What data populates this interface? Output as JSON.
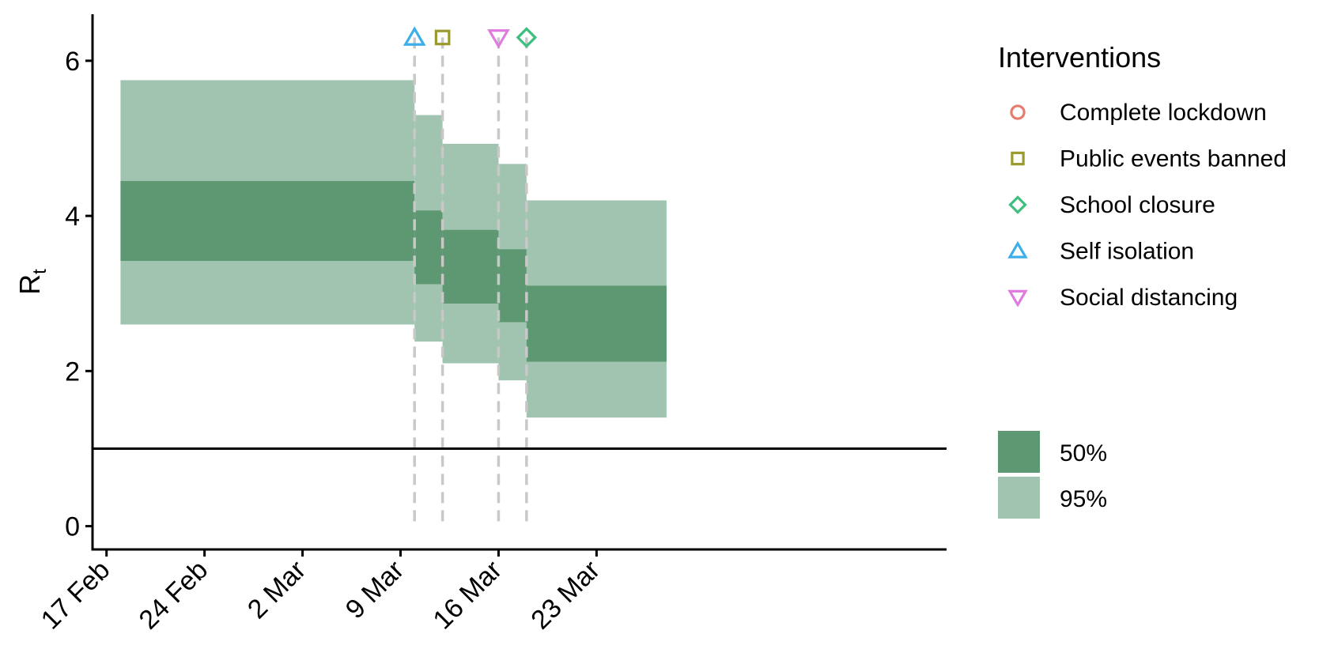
{
  "chart_data": {
    "type": "area",
    "ylabel": "R",
    "ylabel_sub": "t",
    "xlabel": "",
    "ylim": [
      -0.3,
      6.6
    ],
    "yticks": [
      0,
      2,
      4,
      6
    ],
    "xlim": [
      -1,
      60
    ],
    "x_ticks": [
      {
        "day": 0,
        "label": "17 Feb"
      },
      {
        "day": 7,
        "label": "24 Feb"
      },
      {
        "day": 14,
        "label": "2 Mar"
      },
      {
        "day": 21,
        "label": "9 Mar"
      },
      {
        "day": 28,
        "label": "16 Mar"
      },
      {
        "day": 35,
        "label": "23 Mar"
      }
    ],
    "reference_line": 1,
    "series": [
      {
        "start_day": 1,
        "end_day": 22,
        "ci95": [
          2.6,
          5.75
        ],
        "ci50": [
          3.42,
          4.45
        ]
      },
      {
        "start_day": 22,
        "end_day": 24,
        "ci95": [
          2.38,
          5.3
        ],
        "ci50": [
          3.12,
          4.07
        ]
      },
      {
        "start_day": 24,
        "end_day": 28,
        "ci95": [
          2.1,
          4.93
        ],
        "ci50": [
          2.87,
          3.82
        ]
      },
      {
        "start_day": 28,
        "end_day": 30,
        "ci95": [
          1.88,
          4.67
        ],
        "ci50": [
          2.63,
          3.57
        ]
      },
      {
        "start_day": 30,
        "end_day": 40,
        "ci95": [
          1.4,
          4.2
        ],
        "ci50": [
          2.12,
          3.1
        ]
      }
    ],
    "interventions": [
      {
        "name": "Self isolation",
        "day": 22,
        "shape": "triangle-up",
        "color": "#3daee9"
      },
      {
        "name": "Public events banned",
        "day": 24,
        "shape": "square",
        "color": "#9a9a2e"
      },
      {
        "name": "Social distancing",
        "day": 28,
        "shape": "triangle-down",
        "color": "#e07be0"
      },
      {
        "name": "School closure",
        "day": 30,
        "shape": "diamond",
        "color": "#3fbf7f"
      }
    ],
    "marker_y": 6.3,
    "colors": {
      "ci50": "#5e9873",
      "ci95": "#a1c4b0",
      "vline": "#c8c8c8"
    },
    "legend_interventions": {
      "title": "Interventions",
      "items": [
        {
          "label": "Complete lockdown",
          "shape": "circle",
          "color": "#e57c6e"
        },
        {
          "label": "Public events banned",
          "shape": "square",
          "color": "#9a9a2e"
        },
        {
          "label": "School closure",
          "shape": "diamond",
          "color": "#3fbf7f"
        },
        {
          "label": "Self isolation",
          "shape": "triangle-up",
          "color": "#3daee9"
        },
        {
          "label": "Social distancing",
          "shape": "triangle-down",
          "color": "#e07be0"
        }
      ]
    },
    "legend_ci": [
      {
        "label": "50%",
        "color": "#5e9873"
      },
      {
        "label": "95%",
        "color": "#a1c4b0"
      }
    ]
  }
}
